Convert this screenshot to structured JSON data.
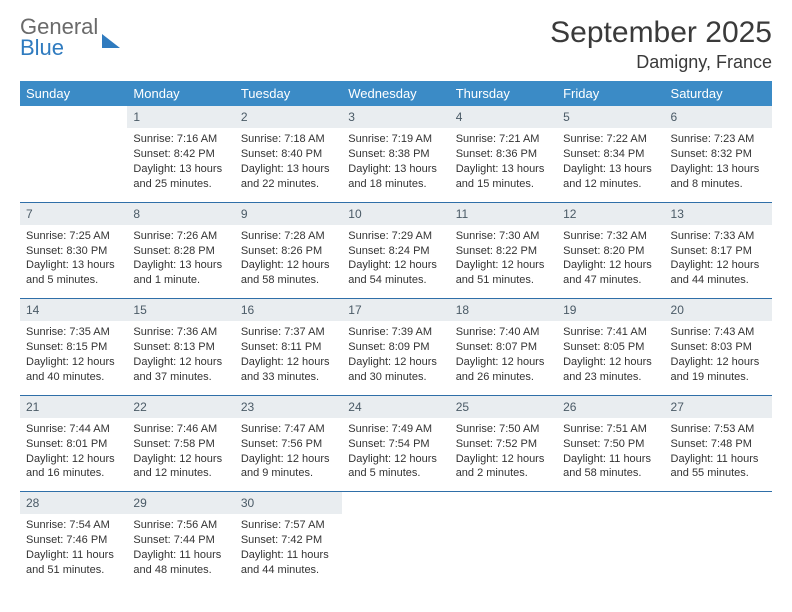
{
  "brand": {
    "general": "General",
    "blue": "Blue"
  },
  "title": "September 2025",
  "location": "Damigny, France",
  "colors": {
    "header_bg": "#3b8bc6",
    "header_text": "#ffffff",
    "daynum_bg": "#e9edf0",
    "daynum_text": "#4a5a66",
    "row_border": "#2f6fa8",
    "logo_gray": "#6a6a6a",
    "logo_blue": "#2f7bbf"
  },
  "weekdays": [
    "Sunday",
    "Monday",
    "Tuesday",
    "Wednesday",
    "Thursday",
    "Friday",
    "Saturday"
  ],
  "weeks": [
    [
      {
        "n": "",
        "sunrise": "",
        "sunset": "",
        "daylight": ""
      },
      {
        "n": "1",
        "sunrise": "Sunrise: 7:16 AM",
        "sunset": "Sunset: 8:42 PM",
        "daylight": "Daylight: 13 hours and 25 minutes."
      },
      {
        "n": "2",
        "sunrise": "Sunrise: 7:18 AM",
        "sunset": "Sunset: 8:40 PM",
        "daylight": "Daylight: 13 hours and 22 minutes."
      },
      {
        "n": "3",
        "sunrise": "Sunrise: 7:19 AM",
        "sunset": "Sunset: 8:38 PM",
        "daylight": "Daylight: 13 hours and 18 minutes."
      },
      {
        "n": "4",
        "sunrise": "Sunrise: 7:21 AM",
        "sunset": "Sunset: 8:36 PM",
        "daylight": "Daylight: 13 hours and 15 minutes."
      },
      {
        "n": "5",
        "sunrise": "Sunrise: 7:22 AM",
        "sunset": "Sunset: 8:34 PM",
        "daylight": "Daylight: 13 hours and 12 minutes."
      },
      {
        "n": "6",
        "sunrise": "Sunrise: 7:23 AM",
        "sunset": "Sunset: 8:32 PM",
        "daylight": "Daylight: 13 hours and 8 minutes."
      }
    ],
    [
      {
        "n": "7",
        "sunrise": "Sunrise: 7:25 AM",
        "sunset": "Sunset: 8:30 PM",
        "daylight": "Daylight: 13 hours and 5 minutes."
      },
      {
        "n": "8",
        "sunrise": "Sunrise: 7:26 AM",
        "sunset": "Sunset: 8:28 PM",
        "daylight": "Daylight: 13 hours and 1 minute."
      },
      {
        "n": "9",
        "sunrise": "Sunrise: 7:28 AM",
        "sunset": "Sunset: 8:26 PM",
        "daylight": "Daylight: 12 hours and 58 minutes."
      },
      {
        "n": "10",
        "sunrise": "Sunrise: 7:29 AM",
        "sunset": "Sunset: 8:24 PM",
        "daylight": "Daylight: 12 hours and 54 minutes."
      },
      {
        "n": "11",
        "sunrise": "Sunrise: 7:30 AM",
        "sunset": "Sunset: 8:22 PM",
        "daylight": "Daylight: 12 hours and 51 minutes."
      },
      {
        "n": "12",
        "sunrise": "Sunrise: 7:32 AM",
        "sunset": "Sunset: 8:20 PM",
        "daylight": "Daylight: 12 hours and 47 minutes."
      },
      {
        "n": "13",
        "sunrise": "Sunrise: 7:33 AM",
        "sunset": "Sunset: 8:17 PM",
        "daylight": "Daylight: 12 hours and 44 minutes."
      }
    ],
    [
      {
        "n": "14",
        "sunrise": "Sunrise: 7:35 AM",
        "sunset": "Sunset: 8:15 PM",
        "daylight": "Daylight: 12 hours and 40 minutes."
      },
      {
        "n": "15",
        "sunrise": "Sunrise: 7:36 AM",
        "sunset": "Sunset: 8:13 PM",
        "daylight": "Daylight: 12 hours and 37 minutes."
      },
      {
        "n": "16",
        "sunrise": "Sunrise: 7:37 AM",
        "sunset": "Sunset: 8:11 PM",
        "daylight": "Daylight: 12 hours and 33 minutes."
      },
      {
        "n": "17",
        "sunrise": "Sunrise: 7:39 AM",
        "sunset": "Sunset: 8:09 PM",
        "daylight": "Daylight: 12 hours and 30 minutes."
      },
      {
        "n": "18",
        "sunrise": "Sunrise: 7:40 AM",
        "sunset": "Sunset: 8:07 PM",
        "daylight": "Daylight: 12 hours and 26 minutes."
      },
      {
        "n": "19",
        "sunrise": "Sunrise: 7:41 AM",
        "sunset": "Sunset: 8:05 PM",
        "daylight": "Daylight: 12 hours and 23 minutes."
      },
      {
        "n": "20",
        "sunrise": "Sunrise: 7:43 AM",
        "sunset": "Sunset: 8:03 PM",
        "daylight": "Daylight: 12 hours and 19 minutes."
      }
    ],
    [
      {
        "n": "21",
        "sunrise": "Sunrise: 7:44 AM",
        "sunset": "Sunset: 8:01 PM",
        "daylight": "Daylight: 12 hours and 16 minutes."
      },
      {
        "n": "22",
        "sunrise": "Sunrise: 7:46 AM",
        "sunset": "Sunset: 7:58 PM",
        "daylight": "Daylight: 12 hours and 12 minutes."
      },
      {
        "n": "23",
        "sunrise": "Sunrise: 7:47 AM",
        "sunset": "Sunset: 7:56 PM",
        "daylight": "Daylight: 12 hours and 9 minutes."
      },
      {
        "n": "24",
        "sunrise": "Sunrise: 7:49 AM",
        "sunset": "Sunset: 7:54 PM",
        "daylight": "Daylight: 12 hours and 5 minutes."
      },
      {
        "n": "25",
        "sunrise": "Sunrise: 7:50 AM",
        "sunset": "Sunset: 7:52 PM",
        "daylight": "Daylight: 12 hours and 2 minutes."
      },
      {
        "n": "26",
        "sunrise": "Sunrise: 7:51 AM",
        "sunset": "Sunset: 7:50 PM",
        "daylight": "Daylight: 11 hours and 58 minutes."
      },
      {
        "n": "27",
        "sunrise": "Sunrise: 7:53 AM",
        "sunset": "Sunset: 7:48 PM",
        "daylight": "Daylight: 11 hours and 55 minutes."
      }
    ],
    [
      {
        "n": "28",
        "sunrise": "Sunrise: 7:54 AM",
        "sunset": "Sunset: 7:46 PM",
        "daylight": "Daylight: 11 hours and 51 minutes."
      },
      {
        "n": "29",
        "sunrise": "Sunrise: 7:56 AM",
        "sunset": "Sunset: 7:44 PM",
        "daylight": "Daylight: 11 hours and 48 minutes."
      },
      {
        "n": "30",
        "sunrise": "Sunrise: 7:57 AM",
        "sunset": "Sunset: 7:42 PM",
        "daylight": "Daylight: 11 hours and 44 minutes."
      },
      {
        "n": "",
        "sunrise": "",
        "sunset": "",
        "daylight": ""
      },
      {
        "n": "",
        "sunrise": "",
        "sunset": "",
        "daylight": ""
      },
      {
        "n": "",
        "sunrise": "",
        "sunset": "",
        "daylight": ""
      },
      {
        "n": "",
        "sunrise": "",
        "sunset": "",
        "daylight": ""
      }
    ]
  ]
}
